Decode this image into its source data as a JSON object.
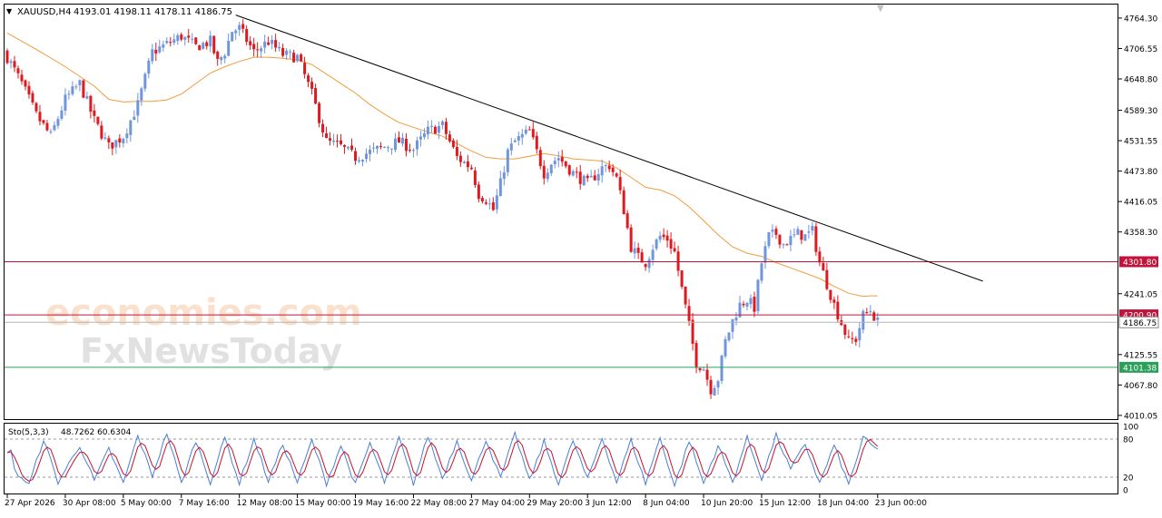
{
  "header": {
    "symbol": "XAUUSD,H4",
    "ohlc": "4193.01 4198.11 4178.11 4186.75"
  },
  "watermark": {
    "line1": "economies.com",
    "line2": "FxNewsToday"
  },
  "colors": {
    "bull": "#6f95dd",
    "bear": "#dd1a1f",
    "ma": "#f09c3c",
    "trend": "#000000",
    "level_red": "#c0143c",
    "level_green": "#2ca05a",
    "stoch_main": "#4a7fd4",
    "stoch_signal": "#c8102e"
  },
  "chart_data": [
    {
      "type": "candlestick",
      "title": "XAUUSD,H4",
      "ylim": [
        4003,
        4790
      ],
      "y_ticks": [
        "4764.30",
        "4706.55",
        "4648.80",
        "4589.30",
        "4531.55",
        "4473.80",
        "4416.05",
        "4358.30",
        "4241.05",
        "4125.55",
        "4067.80",
        "4010.05"
      ],
      "x_ticks": [
        "27 Apr 2026",
        "30 Apr 08:00",
        "5 May 00:00",
        "7 May 16:00",
        "12 May 08:00",
        "15 May 00:00",
        "19 May 16:00",
        "22 May 08:00",
        "27 May 04:00",
        "29 May 20:00",
        "3 Jun 12:00",
        "8 Jun 04:00",
        "10 Jun 20:00",
        "15 Jun 12:00",
        "18 Jun 04:00",
        "23 Jun 00:00"
      ],
      "x_ticks_candle_index": [
        0,
        16,
        32,
        48,
        64,
        80,
        96,
        112,
        128,
        144,
        160,
        176,
        192,
        208,
        224,
        240
      ],
      "levels": [
        {
          "label": "4301.80",
          "value": 4301.8,
          "color": "#c0143c"
        },
        {
          "label": "4200.90",
          "value": 4200.9,
          "color": "#c0143c"
        },
        {
          "label": "4101.38",
          "value": 4101.38,
          "color": "#2ca05a"
        }
      ],
      "current_price": {
        "label": "4186.75",
        "value": 4186.75
      },
      "trendline": [
        {
          "i": 63,
          "price": 4770
        },
        {
          "i": 269,
          "price": 4265
        }
      ],
      "candle_count": 241,
      "close_path": [
        [
          0,
          4690
        ],
        [
          4,
          4640
        ],
        [
          8,
          4580
        ],
        [
          12,
          4540
        ],
        [
          16,
          4610
        ],
        [
          20,
          4640
        ],
        [
          24,
          4570
        ],
        [
          28,
          4520
        ],
        [
          32,
          4540
        ],
        [
          36,
          4600
        ],
        [
          40,
          4700
        ],
        [
          44,
          4715
        ],
        [
          48,
          4730
        ],
        [
          52,
          4710
        ],
        [
          56,
          4720
        ],
        [
          58,
          4680
        ],
        [
          60,
          4700
        ],
        [
          62,
          4740
        ],
        [
          64,
          4745
        ],
        [
          68,
          4700
        ],
        [
          72,
          4720
        ],
        [
          76,
          4695
        ],
        [
          80,
          4690
        ],
        [
          84,
          4620
        ],
        [
          88,
          4530
        ],
        [
          92,
          4520
        ],
        [
          96,
          4500
        ],
        [
          100,
          4510
        ],
        [
          104,
          4520
        ],
        [
          108,
          4530
        ],
        [
          112,
          4515
        ],
        [
          116,
          4550
        ],
        [
          120,
          4560
        ],
        [
          124,
          4500
        ],
        [
          128,
          4480
        ],
        [
          130,
          4430
        ],
        [
          132,
          4420
        ],
        [
          134,
          4400
        ],
        [
          136,
          4450
        ],
        [
          138,
          4510
        ],
        [
          140,
          4530
        ],
        [
          144,
          4550
        ],
        [
          148,
          4470
        ],
        [
          150,
          4490
        ],
        [
          152,
          4500
        ],
        [
          156,
          4470
        ],
        [
          160,
          4450
        ],
        [
          164,
          4480
        ],
        [
          166,
          4485
        ],
        [
          168,
          4460
        ],
        [
          170,
          4400
        ],
        [
          172,
          4330
        ],
        [
          174,
          4310
        ],
        [
          176,
          4300
        ],
        [
          178,
          4330
        ],
        [
          180,
          4350
        ],
        [
          182,
          4345
        ],
        [
          184,
          4320
        ],
        [
          186,
          4250
        ],
        [
          188,
          4180
        ],
        [
          190,
          4110
        ],
        [
          192,
          4100
        ],
        [
          194,
          4060
        ],
        [
          196,
          4080
        ],
        [
          198,
          4150
        ],
        [
          200,
          4190
        ],
        [
          202,
          4220
        ],
        [
          204,
          4230
        ],
        [
          206,
          4215
        ],
        [
          208,
          4300
        ],
        [
          210,
          4350
        ],
        [
          212,
          4355
        ],
        [
          214,
          4335
        ],
        [
          216,
          4345
        ],
        [
          218,
          4355
        ],
        [
          220,
          4350
        ],
        [
          222,
          4360
        ],
        [
          224,
          4300
        ],
        [
          226,
          4260
        ],
        [
          228,
          4220
        ],
        [
          230,
          4185
        ],
        [
          232,
          4150
        ],
        [
          234,
          4155
        ],
        [
          236,
          4200
        ],
        [
          238,
          4210
        ],
        [
          240,
          4186.75
        ]
      ],
      "moving_average": [
        [
          0,
          4736
        ],
        [
          8,
          4705
        ],
        [
          16,
          4672
        ],
        [
          24,
          4635
        ],
        [
          28,
          4610
        ],
        [
          32,
          4605
        ],
        [
          36,
          4606
        ],
        [
          40,
          4606
        ],
        [
          44,
          4609
        ],
        [
          48,
          4620
        ],
        [
          52,
          4640
        ],
        [
          56,
          4660
        ],
        [
          60,
          4672
        ],
        [
          64,
          4682
        ],
        [
          68,
          4690
        ],
        [
          72,
          4690
        ],
        [
          76,
          4688
        ],
        [
          80,
          4685
        ],
        [
          84,
          4676
        ],
        [
          88,
          4658
        ],
        [
          92,
          4640
        ],
        [
          96,
          4622
        ],
        [
          100,
          4600
        ],
        [
          104,
          4582
        ],
        [
          108,
          4566
        ],
        [
          112,
          4557
        ],
        [
          116,
          4548
        ],
        [
          120,
          4540
        ],
        [
          124,
          4526
        ],
        [
          128,
          4512
        ],
        [
          132,
          4500
        ],
        [
          136,
          4497
        ],
        [
          140,
          4497
        ],
        [
          144,
          4502
        ],
        [
          148,
          4507
        ],
        [
          152,
          4503
        ],
        [
          156,
          4497
        ],
        [
          160,
          4495
        ],
        [
          164,
          4493
        ],
        [
          168,
          4480
        ],
        [
          172,
          4462
        ],
        [
          176,
          4443
        ],
        [
          180,
          4438
        ],
        [
          184,
          4427
        ],
        [
          188,
          4406
        ],
        [
          192,
          4380
        ],
        [
          196,
          4353
        ],
        [
          200,
          4330
        ],
        [
          204,
          4318
        ],
        [
          208,
          4312
        ],
        [
          212,
          4300
        ],
        [
          216,
          4290
        ],
        [
          220,
          4280
        ],
        [
          224,
          4270
        ],
        [
          228,
          4255
        ],
        [
          232,
          4242
        ],
        [
          236,
          4236
        ],
        [
          238,
          4237
        ],
        [
          240,
          4237
        ]
      ]
    },
    {
      "type": "line",
      "title": "Sto(5,3,3)",
      "values_text": "48.7262 60.6304",
      "ylim": [
        0,
        100
      ],
      "y_ticks": [
        "100",
        "80",
        "20",
        "0"
      ],
      "levels": [
        80,
        20
      ],
      "series": [
        {
          "name": "Sto(5,3,3) %K",
          "last": 48.7262
        },
        {
          "name": "Sto(5,3,3) %D",
          "last": 60.6304
        }
      ],
      "cycle_peaks": [
        [
          2,
          30
        ],
        [
          10,
          80
        ],
        [
          20,
          70
        ],
        [
          28,
          65
        ],
        [
          36,
          85
        ],
        [
          44,
          90
        ],
        [
          52,
          78
        ],
        [
          60,
          82
        ],
        [
          68,
          80
        ],
        [
          76,
          72
        ],
        [
          84,
          78
        ],
        [
          92,
          70
        ],
        [
          100,
          74
        ],
        [
          108,
          82
        ],
        [
          116,
          85
        ],
        [
          124,
          78
        ],
        [
          132,
          80
        ],
        [
          140,
          88
        ],
        [
          148,
          76
        ],
        [
          156,
          78
        ],
        [
          164,
          82
        ],
        [
          172,
          78
        ],
        [
          180,
          82
        ],
        [
          188,
          78
        ],
        [
          196,
          70
        ],
        [
          204,
          82
        ],
        [
          212,
          86
        ],
        [
          220,
          72
        ],
        [
          228,
          70
        ],
        [
          236,
          82
        ],
        [
          240,
          62
        ]
      ],
      "cycle_troughs": [
        [
          6,
          8
        ],
        [
          14,
          12
        ],
        [
          24,
          14
        ],
        [
          32,
          10
        ],
        [
          40,
          22
        ],
        [
          48,
          10
        ],
        [
          56,
          12
        ],
        [
          64,
          10
        ],
        [
          72,
          14
        ],
        [
          80,
          12
        ],
        [
          88,
          10
        ],
        [
          96,
          8
        ],
        [
          104,
          12
        ],
        [
          112,
          10
        ],
        [
          120,
          18
        ],
        [
          128,
          14
        ],
        [
          136,
          18
        ],
        [
          144,
          14
        ],
        [
          152,
          10
        ],
        [
          160,
          16
        ],
        [
          168,
          12
        ],
        [
          176,
          10
        ],
        [
          184,
          6
        ],
        [
          192,
          10
        ],
        [
          200,
          12
        ],
        [
          208,
          18
        ],
        [
          216,
          32
        ],
        [
          224,
          10
        ],
        [
          232,
          8
        ]
      ]
    }
  ]
}
